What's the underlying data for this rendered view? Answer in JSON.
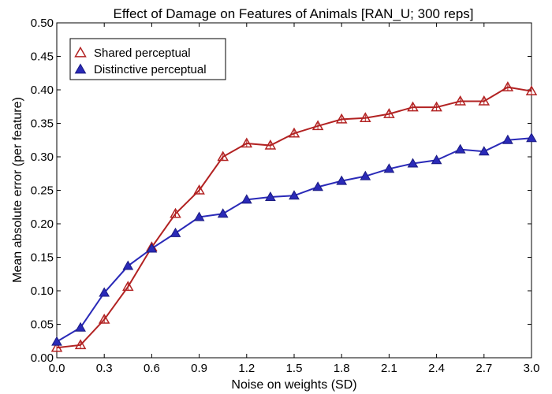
{
  "chart_data": {
    "type": "line",
    "title": "Effect of Damage on Features of Animals [RAN_U; 300 reps]",
    "xlabel": "Noise on weights (SD)",
    "ylabel": "Mean absolute error (per feature)",
    "xlim": [
      0.0,
      3.0
    ],
    "ylim": [
      0.0,
      0.5
    ],
    "xticks": [
      "0.0",
      "0.3",
      "0.6",
      "0.9",
      "1.2",
      "1.5",
      "1.8",
      "2.1",
      "2.4",
      "2.7",
      "3.0"
    ],
    "yticks": [
      "0.00",
      "0.05",
      "0.10",
      "0.15",
      "0.20",
      "0.25",
      "0.30",
      "0.35",
      "0.40",
      "0.45",
      "0.50"
    ],
    "x": [
      0.0,
      0.15,
      0.3,
      0.45,
      0.6,
      0.75,
      0.9,
      1.05,
      1.2,
      1.35,
      1.5,
      1.65,
      1.8,
      1.95,
      2.1,
      2.25,
      2.4,
      2.55,
      2.7,
      2.85,
      3.0
    ],
    "grid": false,
    "legend_position": "top-left",
    "series": [
      {
        "name": "Shared perceptual",
        "color": "#b22222",
        "marker": "open-triangle",
        "values": [
          0.015,
          0.019,
          0.057,
          0.106,
          0.165,
          0.215,
          0.25,
          0.3,
          0.32,
          0.317,
          0.335,
          0.346,
          0.356,
          0.358,
          0.364,
          0.374,
          0.374,
          0.383,
          0.383,
          0.404,
          0.398
        ]
      },
      {
        "name": "Distinctive perceptual",
        "color": "#2a2ab8",
        "marker": "filled-triangle",
        "values": [
          0.024,
          0.045,
          0.097,
          0.137,
          0.163,
          0.186,
          0.21,
          0.215,
          0.236,
          0.24,
          0.242,
          0.255,
          0.264,
          0.271,
          0.282,
          0.29,
          0.295,
          0.311,
          0.308,
          0.325,
          0.328
        ]
      }
    ]
  }
}
